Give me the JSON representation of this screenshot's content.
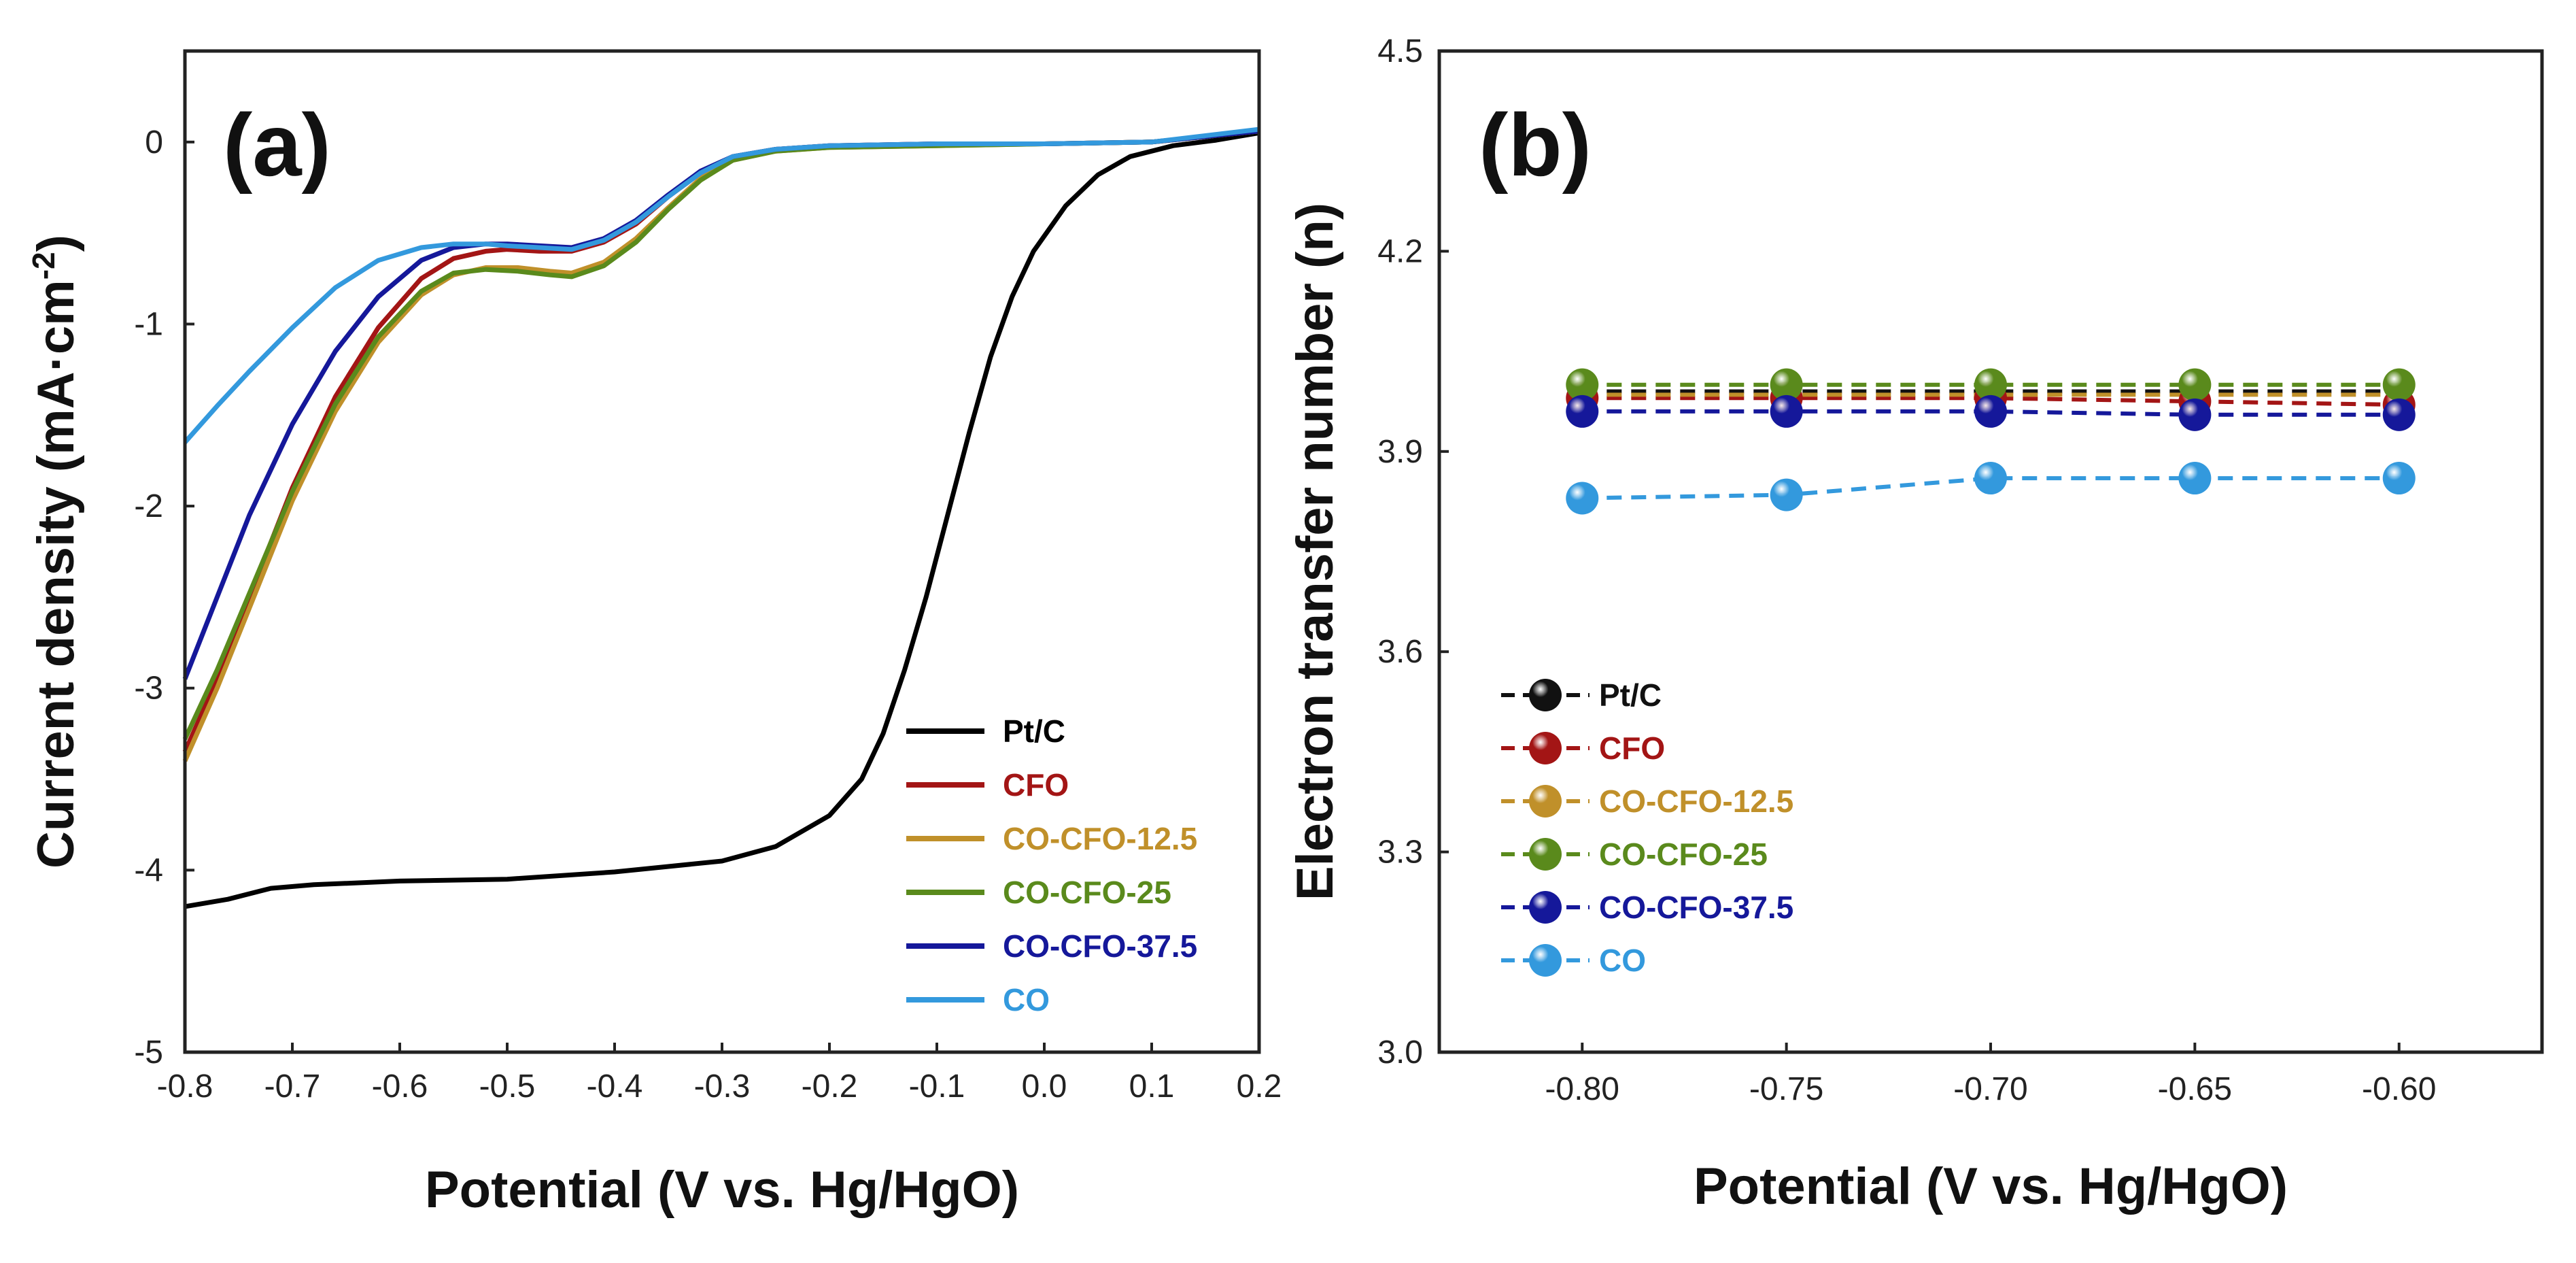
{
  "chart_data": [
    {
      "panel": "(a)",
      "type": "line",
      "xlabel": "Potential (V vs. Hg/HgO)",
      "ylabel_main": "Current density (mA·cm",
      "ylabel_sup": "-2",
      "ylabel_close": ")",
      "xlim": [
        -0.8,
        0.2
      ],
      "ylim": [
        -5,
        0.5
      ],
      "xticks": [
        "-0.8",
        "-0.7",
        "-0.6",
        "-0.5",
        "-0.4",
        "-0.3",
        "-0.2",
        "-0.1",
        "0.0",
        "0.1",
        "0.2"
      ],
      "xtick_values": [
        -0.8,
        -0.7,
        -0.6,
        -0.5,
        -0.4,
        -0.3,
        -0.2,
        -0.1,
        0.0,
        0.1,
        0.2
      ],
      "yticks": [
        "0",
        "-1",
        "-2",
        "-3",
        "-4",
        "-5"
      ],
      "ytick_values": [
        0,
        -1,
        -2,
        -3,
        -4,
        -5
      ],
      "legend_position": "bottom-right",
      "series": [
        {
          "name": "Pt/C",
          "color": "#000000",
          "x": [
            -0.8,
            -0.76,
            -0.72,
            -0.68,
            -0.6,
            -0.5,
            -0.4,
            -0.3,
            -0.25,
            -0.2,
            -0.17,
            -0.15,
            -0.13,
            -0.11,
            -0.09,
            -0.07,
            -0.05,
            -0.03,
            -0.01,
            0.02,
            0.05,
            0.08,
            0.12,
            0.16,
            0.2
          ],
          "y": [
            -4.2,
            -4.16,
            -4.1,
            -4.08,
            -4.06,
            -4.05,
            -4.01,
            -3.95,
            -3.87,
            -3.7,
            -3.5,
            -3.25,
            -2.9,
            -2.5,
            -2.05,
            -1.6,
            -1.18,
            -0.85,
            -0.6,
            -0.35,
            -0.18,
            -0.08,
            -0.02,
            0.01,
            0.05
          ]
        },
        {
          "name": "CFO",
          "color": "#a31515",
          "x": [
            -0.8,
            -0.77,
            -0.74,
            -0.7,
            -0.66,
            -0.62,
            -0.58,
            -0.55,
            -0.52,
            -0.5,
            -0.47,
            -0.44,
            -0.41,
            -0.38,
            -0.35,
            -0.32,
            -0.29,
            -0.25,
            -0.2,
            -0.1,
            0.0,
            0.1,
            0.2
          ],
          "y": [
            -3.35,
            -2.95,
            -2.5,
            -1.9,
            -1.4,
            -1.02,
            -0.75,
            -0.64,
            -0.6,
            -0.59,
            -0.6,
            -0.6,
            -0.55,
            -0.45,
            -0.3,
            -0.17,
            -0.08,
            -0.04,
            -0.02,
            -0.01,
            -0.01,
            0.0,
            0.06
          ]
        },
        {
          "name": "CO-CFO-12.5",
          "color": "#c0902a",
          "x": [
            -0.8,
            -0.77,
            -0.74,
            -0.7,
            -0.66,
            -0.62,
            -0.58,
            -0.55,
            -0.52,
            -0.49,
            -0.46,
            -0.44,
            -0.41,
            -0.38,
            -0.35,
            -0.32,
            -0.29,
            -0.25,
            -0.2,
            -0.1,
            0.0,
            0.1,
            0.2
          ],
          "y": [
            -3.4,
            -3.0,
            -2.56,
            -1.97,
            -1.48,
            -1.1,
            -0.84,
            -0.73,
            -0.69,
            -0.69,
            -0.71,
            -0.72,
            -0.66,
            -0.53,
            -0.36,
            -0.2,
            -0.1,
            -0.05,
            -0.03,
            -0.02,
            -0.01,
            0.0,
            0.06
          ]
        },
        {
          "name": "CO-CFO-25",
          "color": "#5a8a1c",
          "x": [
            -0.8,
            -0.77,
            -0.74,
            -0.7,
            -0.66,
            -0.62,
            -0.58,
            -0.55,
            -0.52,
            -0.49,
            -0.46,
            -0.44,
            -0.41,
            -0.38,
            -0.35,
            -0.32,
            -0.29,
            -0.25,
            -0.2,
            -0.1,
            0.0,
            0.1,
            0.2
          ],
          "y": [
            -3.28,
            -2.9,
            -2.48,
            -1.92,
            -1.44,
            -1.07,
            -0.82,
            -0.72,
            -0.7,
            -0.71,
            -0.73,
            -0.74,
            -0.68,
            -0.55,
            -0.37,
            -0.21,
            -0.1,
            -0.05,
            -0.03,
            -0.02,
            -0.01,
            0.0,
            0.06
          ]
        },
        {
          "name": "CO-CFO-37.5",
          "color": "#15189a",
          "x": [
            -0.8,
            -0.77,
            -0.74,
            -0.7,
            -0.66,
            -0.62,
            -0.58,
            -0.55,
            -0.52,
            -0.5,
            -0.47,
            -0.44,
            -0.41,
            -0.38,
            -0.35,
            -0.32,
            -0.29,
            -0.25,
            -0.2,
            -0.1,
            0.0,
            0.1,
            0.2
          ],
          "y": [
            -2.95,
            -2.5,
            -2.05,
            -1.55,
            -1.15,
            -0.85,
            -0.65,
            -0.58,
            -0.56,
            -0.56,
            -0.57,
            -0.58,
            -0.53,
            -0.43,
            -0.29,
            -0.16,
            -0.08,
            -0.04,
            -0.02,
            -0.01,
            -0.01,
            0.0,
            0.06
          ]
        },
        {
          "name": "CO",
          "color": "#3399dd",
          "x": [
            -0.8,
            -0.77,
            -0.74,
            -0.7,
            -0.66,
            -0.62,
            -0.58,
            -0.55,
            -0.52,
            -0.5,
            -0.47,
            -0.44,
            -0.41,
            -0.38,
            -0.35,
            -0.32,
            -0.29,
            -0.25,
            -0.2,
            -0.1,
            0.0,
            0.1,
            0.2
          ],
          "y": [
            -1.65,
            -1.45,
            -1.26,
            -1.02,
            -0.8,
            -0.65,
            -0.58,
            -0.56,
            -0.56,
            -0.57,
            -0.58,
            -0.59,
            -0.54,
            -0.44,
            -0.3,
            -0.17,
            -0.08,
            -0.04,
            -0.02,
            -0.01,
            -0.01,
            0.0,
            0.07
          ]
        }
      ]
    },
    {
      "panel": "(b)",
      "type": "line",
      "xlabel": "Potential (V vs. Hg/HgO)",
      "ylabel": "Electron transfer number (n)",
      "xlim": [
        -0.835,
        -0.565
      ],
      "ylim": [
        3.0,
        4.5
      ],
      "xticks": [
        "-0.80",
        "-0.75",
        "-0.70",
        "-0.65",
        "-0.60"
      ],
      "xtick_values": [
        -0.8,
        -0.75,
        -0.7,
        -0.65,
        -0.6
      ],
      "yticks": [
        "3.0",
        "3.3",
        "3.6",
        "3.9",
        "4.2",
        "4.5"
      ],
      "ytick_values": [
        3.0,
        3.3,
        3.6,
        3.9,
        4.2,
        4.5
      ],
      "legend_position": "bottom-left",
      "x": [
        -0.8,
        -0.75,
        -0.7,
        -0.65,
        -0.6
      ],
      "series": [
        {
          "name": "Pt/C",
          "color": "#111111",
          "values": [
            3.99,
            3.99,
            3.99,
            3.99,
            3.99
          ],
          "draw_markers": false
        },
        {
          "name": "CFO",
          "color": "#a31515",
          "values": [
            3.98,
            3.98,
            3.98,
            3.975,
            3.97
          ],
          "draw_markers": true
        },
        {
          "name": "CO-CFO-12.5",
          "color": "#c0902a",
          "values": [
            3.985,
            3.985,
            3.985,
            3.985,
            3.985
          ],
          "draw_markers": false
        },
        {
          "name": "CO-CFO-25",
          "color": "#5a8a1c",
          "values": [
            4.0,
            4.0,
            4.0,
            4.0,
            4.0
          ],
          "draw_markers": true
        },
        {
          "name": "CO-CFO-37.5",
          "color": "#15189a",
          "values": [
            3.96,
            3.96,
            3.96,
            3.955,
            3.955
          ],
          "draw_markers": true
        },
        {
          "name": "CO",
          "color": "#3399dd",
          "values": [
            3.83,
            3.835,
            3.86,
            3.86,
            3.86
          ],
          "draw_markers": true
        }
      ]
    }
  ]
}
